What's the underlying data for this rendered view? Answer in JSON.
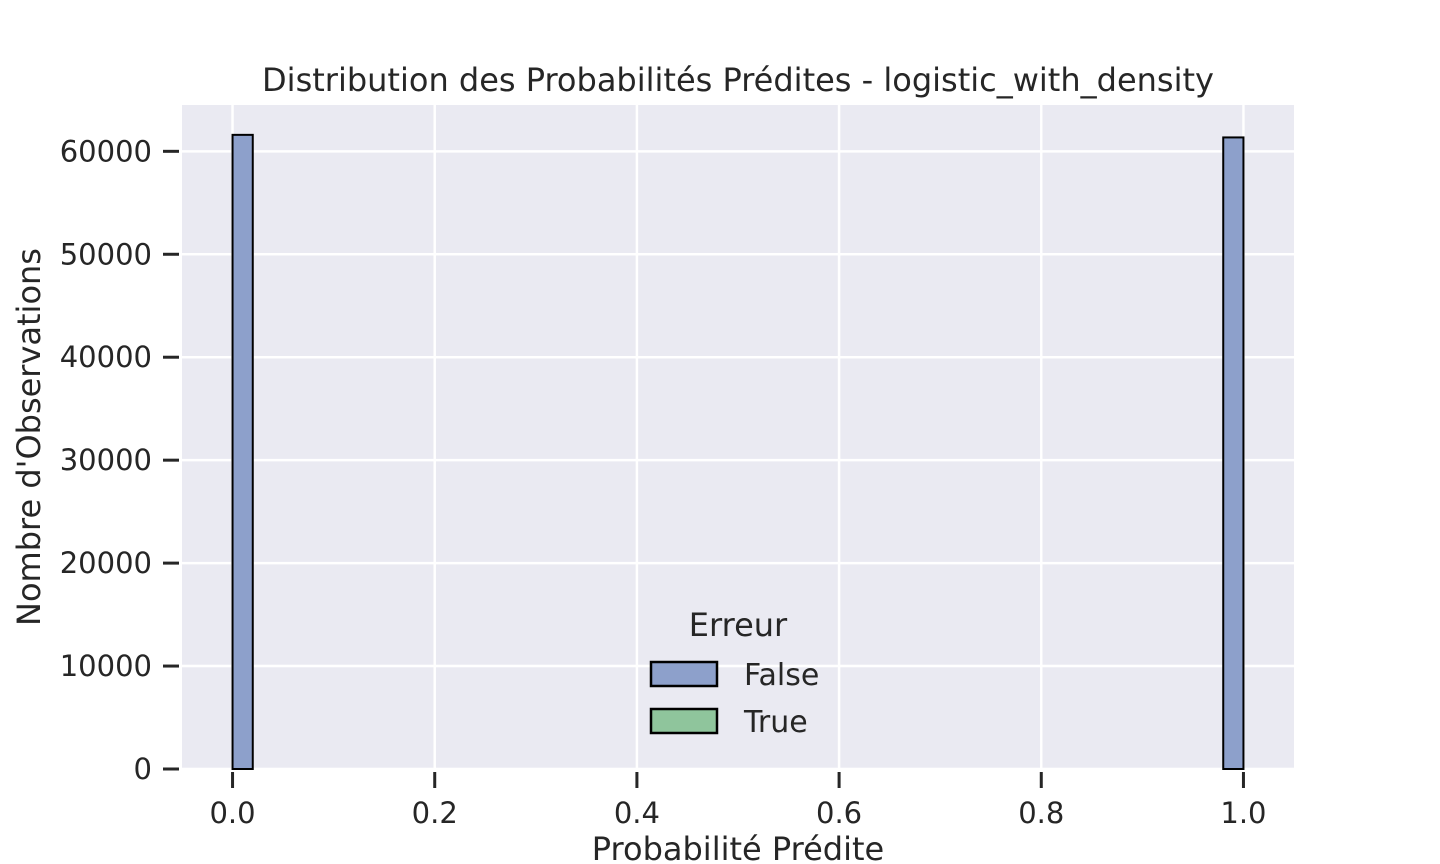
{
  "chart_data": {
    "type": "bar",
    "title": "Distribution des Probabilités Prédites - logistic_with_density",
    "xlabel": "Probabilité Prédite",
    "ylabel": "Nombre d'Observations",
    "xlim": [
      -0.05,
      1.05
    ],
    "ylim": [
      0,
      64500
    ],
    "x_ticks": [
      0.0,
      0.2,
      0.4,
      0.6,
      0.8,
      1.0
    ],
    "x_tick_labels": [
      "0.0",
      "0.2",
      "0.4",
      "0.6",
      "0.8",
      "1.0"
    ],
    "y_ticks": [
      0,
      10000,
      20000,
      30000,
      40000,
      50000,
      60000
    ],
    "y_tick_labels": [
      "0",
      "10000",
      "20000",
      "30000",
      "40000",
      "50000",
      "60000"
    ],
    "grid": true,
    "legend": {
      "title": "Erreur",
      "placement": "lower-center",
      "entries": [
        {
          "label": "False",
          "color": "#8da0cb"
        },
        {
          "label": "True",
          "color": "#8fc59c"
        }
      ]
    },
    "colors": {
      "background": "#eaeaf2",
      "grid": "#ffffff",
      "edge": "#000000",
      "false_fill": "#8da0cb",
      "true_fill": "#8fc59c"
    },
    "series": [
      {
        "name": "False",
        "bins": [
          {
            "x0": 0.0,
            "x1": 0.02,
            "count": 61600
          },
          {
            "x0": 0.98,
            "x1": 1.0,
            "count": 61350
          }
        ]
      },
      {
        "name": "True",
        "bins": []
      }
    ]
  }
}
